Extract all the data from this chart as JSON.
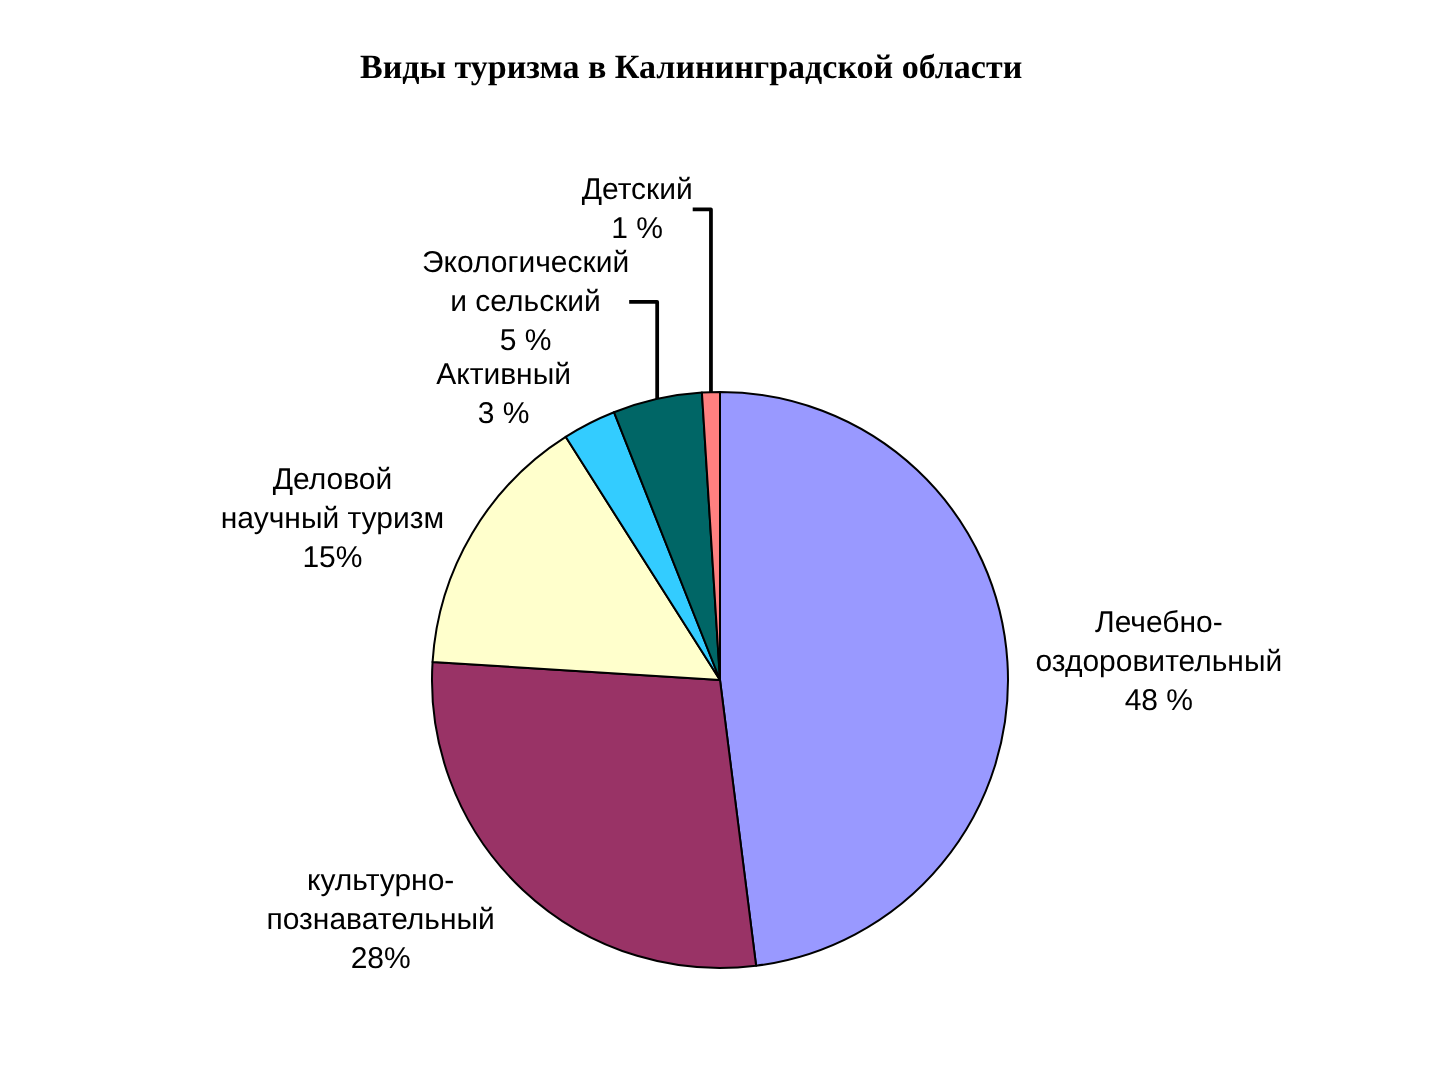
{
  "chart_data": {
    "type": "pie",
    "title": "Виды туризма в Калининградской области",
    "categories": [
      "Лечебно-\nоздоровительный",
      "культурно-\nпознавательный",
      "Деловой\nнаучный туризм",
      "Активный",
      "Экологический\nи сельский",
      "Детский"
    ],
    "values": [
      48,
      28,
      15,
      3,
      5,
      1
    ],
    "value_labels": [
      "48 %",
      "28%",
      "15%",
      "3 %",
      "5 %",
      "1 %"
    ],
    "colors": [
      "#9999ff",
      "#993366",
      "#ffffcc",
      "#33ccff",
      "#006666",
      "#ff8080"
    ]
  }
}
